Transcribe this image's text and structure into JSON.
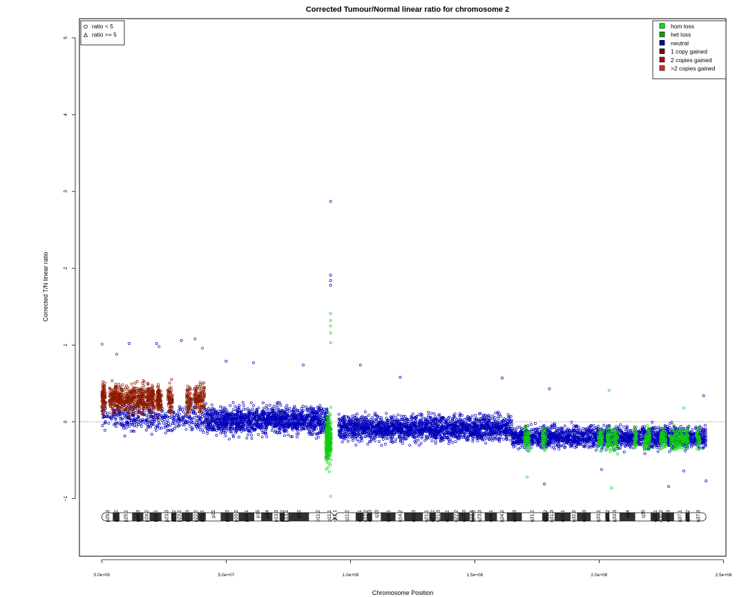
{
  "chart_data": {
    "type": "scatter",
    "title": "Corrected Tumour/Normal linear ratio for chromosome  2",
    "xlabel": "Chromosome Position",
    "ylabel": "Corrected T/N linear ratio",
    "xlim": [
      -9000000,
      251000000
    ],
    "ylim": [
      -1.75,
      5.25
    ],
    "x_ticks": [
      0,
      50000000,
      100000000,
      150000000,
      200000000,
      250000000
    ],
    "x_tick_labels": [
      "0.0e+00",
      "5.0e+07",
      "1.0e+08",
      "1.5e+08",
      "2.0e+08",
      "2.5e+08"
    ],
    "y_ticks": [
      -1,
      0,
      1,
      2,
      3,
      4,
      5
    ],
    "y_tick_labels": [
      "−1",
      "0",
      "1",
      "2",
      "3",
      "4",
      "5"
    ],
    "reference_line_y": 0,
    "grid": false,
    "shape_legend": {
      "placement": "top-left",
      "entries": [
        {
          "label": "ratio < 5",
          "shape": "circle"
        },
        {
          "label": "ratio >= 5",
          "shape": "triangle"
        }
      ]
    },
    "legend": {
      "placement": "top-right",
      "entries": [
        {
          "label": "hom loss",
          "color": "#00ee00"
        },
        {
          "label": "het loss",
          "color": "#00aa00"
        },
        {
          "label": "neutral",
          "color": "#0000aa"
        },
        {
          "label": "1 copy gained",
          "color": "#661100"
        },
        {
          "label": "2 copies gained",
          "color": "#aa1111"
        },
        {
          "label": ">2 copies gained",
          "color": "#ee2222"
        }
      ]
    },
    "series": [
      {
        "name": "neutral",
        "color": "#0000bb",
        "segments": [
          {
            "x": [
              0,
              42000000
            ],
            "mean": 0.05,
            "spread": 0.32,
            "points": 420
          },
          {
            "x": [
              42000000,
              91000000
            ],
            "mean": 0.02,
            "spread": 0.3,
            "points": 1500
          },
          {
            "x": [
              95000000,
              165000000
            ],
            "mean": -0.08,
            "spread": 0.28,
            "points": 2000
          },
          {
            "x": [
              165000000,
              243000000
            ],
            "mean": -0.2,
            "spread": 0.24,
            "points": 2000
          }
        ],
        "outliers": [
          {
            "x": 92000000,
            "y": 2.87
          },
          {
            "x": 92000000,
            "y": 1.91
          },
          {
            "x": 92000000,
            "y": 1.84
          },
          {
            "x": 92000000,
            "y": 1.78
          },
          {
            "x": 32000000,
            "y": 1.06
          },
          {
            "x": 11000000,
            "y": 1.02
          },
          {
            "x": 22000000,
            "y": 1.02
          },
          {
            "x": 50000000,
            "y": 0.79
          },
          {
            "x": 61000000,
            "y": 0.77
          },
          {
            "x": 81000000,
            "y": 0.74
          },
          {
            "x": 104000000,
            "y": 0.74
          },
          {
            "x": 120000000,
            "y": 0.58
          },
          {
            "x": 161000000,
            "y": 0.57
          },
          {
            "x": 180000000,
            "y": 0.43
          },
          {
            "x": 242000000,
            "y": 0.34
          },
          {
            "x": 201000000,
            "y": -0.62
          },
          {
            "x": 234000000,
            "y": -0.64
          },
          {
            "x": 243000000,
            "y": -0.77
          },
          {
            "x": 178000000,
            "y": -0.81
          },
          {
            "x": 228000000,
            "y": -0.84
          }
        ]
      },
      {
        "name": "1 copy gained",
        "color": "#8b1a00",
        "segments": [
          {
            "x": [
              0,
              1500000
            ],
            "mean": 0.3,
            "spread": 0.32,
            "points": 90
          },
          {
            "x": [
              3000000,
              9000000
            ],
            "mean": 0.3,
            "spread": 0.32,
            "points": 220
          },
          {
            "x": [
              9500000,
              13500000
            ],
            "mean": 0.3,
            "spread": 0.32,
            "points": 140
          },
          {
            "x": [
              14000000,
              17500000
            ],
            "mean": 0.3,
            "spread": 0.32,
            "points": 130
          },
          {
            "x": [
              18000000,
              21000000
            ],
            "mean": 0.3,
            "spread": 0.32,
            "points": 130
          },
          {
            "x": [
              22000000,
              24000000
            ],
            "mean": 0.3,
            "spread": 0.32,
            "points": 110
          },
          {
            "x": [
              26500000,
              28500000
            ],
            "mean": 0.3,
            "spread": 0.3,
            "points": 70
          },
          {
            "x": [
              34000000,
              36000000
            ],
            "mean": 0.3,
            "spread": 0.3,
            "points": 70
          },
          {
            "x": [
              37000000,
              41500000
            ],
            "mean": 0.3,
            "spread": 0.3,
            "points": 140
          }
        ],
        "outliers": [
          {
            "x": 100000,
            "y": 1.01
          },
          {
            "x": 37500000,
            "y": 1.08
          },
          {
            "x": 23000000,
            "y": 0.98
          },
          {
            "x": 6000000,
            "y": 0.88
          },
          {
            "x": 40500000,
            "y": 0.96
          }
        ]
      },
      {
        "name": "hom loss",
        "color": "#11cc11",
        "segments": [
          {
            "x": [
              90000000,
              92300000
            ],
            "mean": -0.25,
            "spread": 0.55,
            "points": 260
          },
          {
            "x": [
              170000000,
              172000000
            ],
            "mean": -0.22,
            "spread": 0.26,
            "points": 70
          },
          {
            "x": [
              177000000,
              178500000
            ],
            "mean": -0.22,
            "spread": 0.24,
            "points": 50
          },
          {
            "x": [
              199500000,
              201500000
            ],
            "mean": -0.22,
            "spread": 0.24,
            "points": 60
          },
          {
            "x": [
              203000000,
              207500000
            ],
            "mean": -0.22,
            "spread": 0.24,
            "points": 120
          },
          {
            "x": [
              214000000,
              215000000
            ],
            "mean": -0.22,
            "spread": 0.22,
            "points": 40
          },
          {
            "x": [
              218000000,
              220500000
            ],
            "mean": -0.22,
            "spread": 0.22,
            "points": 70
          },
          {
            "x": [
              224500000,
              227000000
            ],
            "mean": -0.22,
            "spread": 0.22,
            "points": 70
          },
          {
            "x": [
              228500000,
              236000000
            ],
            "mean": -0.22,
            "spread": 0.22,
            "points": 180
          },
          {
            "x": [
              239000000,
              240500000
            ],
            "mean": -0.22,
            "spread": 0.22,
            "points": 40
          }
        ],
        "outliers": [
          {
            "x": 92000000,
            "y": 1.41
          },
          {
            "x": 92000000,
            "y": 1.32
          },
          {
            "x": 92000000,
            "y": 1.25
          },
          {
            "x": 92000000,
            "y": 1.16
          },
          {
            "x": 92000000,
            "y": 1.03
          },
          {
            "x": 92000000,
            "y": -0.97
          },
          {
            "x": 204000000,
            "y": 0.41
          },
          {
            "x": 171000000,
            "y": -0.72
          },
          {
            "x": 205000000,
            "y": -0.86
          },
          {
            "x": 234000000,
            "y": 0.18
          }
        ]
      }
    ],
    "ideogram": {
      "p_arm_end": 92300000,
      "centromere_end": 95000000,
      "chrom_end": 243000000,
      "bands": [
        {
          "name": "p25.3",
          "start": 0,
          "end": 4400000,
          "stain": "gneg"
        },
        {
          "name": "p25.2",
          "start": 4400000,
          "end": 7100000,
          "stain": "gpos"
        },
        {
          "name": "p25.1",
          "start": 7100000,
          "end": 12200000,
          "stain": "gneg"
        },
        {
          "name": "p24.3",
          "start": 12200000,
          "end": 16700000,
          "stain": "gpos"
        },
        {
          "name": "p24.2",
          "start": 16700000,
          "end": 19200000,
          "stain": "gneg"
        },
        {
          "name": "p24.1",
          "start": 19200000,
          "end": 24000000,
          "stain": "gpos"
        },
        {
          "name": "p23.3",
          "start": 24000000,
          "end": 27900000,
          "stain": "gneg"
        },
        {
          "name": "p23.2",
          "start": 27900000,
          "end": 30000000,
          "stain": "gpos"
        },
        {
          "name": "p23.1",
          "start": 30000000,
          "end": 32100000,
          "stain": "gneg"
        },
        {
          "name": "p22.3",
          "start": 32100000,
          "end": 36600000,
          "stain": "gpos"
        },
        {
          "name": "p22.2",
          "start": 36600000,
          "end": 38600000,
          "stain": "gneg"
        },
        {
          "name": "p22.1",
          "start": 38600000,
          "end": 41800000,
          "stain": "gpos"
        },
        {
          "name": "p21",
          "start": 41800000,
          "end": 47800000,
          "stain": "gneg"
        },
        {
          "name": "p16.3",
          "start": 47800000,
          "end": 52900000,
          "stain": "gpos"
        },
        {
          "name": "p16.2",
          "start": 52900000,
          "end": 55000000,
          "stain": "gneg"
        },
        {
          "name": "p16.1",
          "start": 55000000,
          "end": 61300000,
          "stain": "gpos"
        },
        {
          "name": "p15",
          "start": 61300000,
          "end": 64100000,
          "stain": "gneg"
        },
        {
          "name": "p14",
          "start": 64100000,
          "end": 68600000,
          "stain": "gpos"
        },
        {
          "name": "p13.3",
          "start": 68600000,
          "end": 71500000,
          "stain": "gneg"
        },
        {
          "name": "p13.2",
          "start": 71500000,
          "end": 73500000,
          "stain": "gpos"
        },
        {
          "name": "p13.1",
          "start": 73500000,
          "end": 75000000,
          "stain": "gneg"
        },
        {
          "name": "p12",
          "start": 75000000,
          "end": 83300000,
          "stain": "gpos"
        },
        {
          "name": "p11.2",
          "start": 83300000,
          "end": 90500000,
          "stain": "gneg"
        },
        {
          "name": "p11.1",
          "start": 90500000,
          "end": 92300000,
          "stain": "acen"
        },
        {
          "name": "q11.1",
          "start": 92300000,
          "end": 95000000,
          "stain": "acen"
        },
        {
          "name": "q11.2",
          "start": 95000000,
          "end": 102100000,
          "stain": "gneg"
        },
        {
          "name": "q12.1",
          "start": 102100000,
          "end": 105300000,
          "stain": "gpos"
        },
        {
          "name": "q12.2",
          "start": 105300000,
          "end": 106700000,
          "stain": "gneg"
        },
        {
          "name": "q12.3",
          "start": 106700000,
          "end": 108700000,
          "stain": "gpos"
        },
        {
          "name": "q13",
          "start": 108700000,
          "end": 112200000,
          "stain": "gneg"
        },
        {
          "name": "q14.1",
          "start": 112200000,
          "end": 118100000,
          "stain": "gpos"
        },
        {
          "name": "q14.2",
          "start": 118100000,
          "end": 121600000,
          "stain": "gneg"
        },
        {
          "name": "q14.3",
          "start": 121600000,
          "end": 129100000,
          "stain": "gpos"
        },
        {
          "name": "q21.1",
          "start": 129100000,
          "end": 131700000,
          "stain": "gneg"
        },
        {
          "name": "q21.2",
          "start": 131700000,
          "end": 134300000,
          "stain": "gpos"
        },
        {
          "name": "q21.3",
          "start": 134300000,
          "end": 136100000,
          "stain": "gneg"
        },
        {
          "name": "q22.1",
          "start": 136100000,
          "end": 141500000,
          "stain": "gpos"
        },
        {
          "name": "q22.2",
          "start": 141500000,
          "end": 143400000,
          "stain": "gneg"
        },
        {
          "name": "q22.3",
          "start": 143400000,
          "end": 147900000,
          "stain": "gpos"
        },
        {
          "name": "q23.1",
          "start": 147900000,
          "end": 149000000,
          "stain": "gneg"
        },
        {
          "name": "q23.2",
          "start": 149000000,
          "end": 149600000,
          "stain": "gpos"
        },
        {
          "name": "q23.3",
          "start": 149600000,
          "end": 154000000,
          "stain": "gneg"
        },
        {
          "name": "q24.1",
          "start": 154000000,
          "end": 158900000,
          "stain": "gpos"
        },
        {
          "name": "q24.2",
          "start": 158900000,
          "end": 162900000,
          "stain": "gneg"
        },
        {
          "name": "q24.3",
          "start": 162900000,
          "end": 168900000,
          "stain": "gpos"
        },
        {
          "name": "q31.1",
          "start": 168900000,
          "end": 177100000,
          "stain": "gneg"
        },
        {
          "name": "q31.2",
          "start": 177100000,
          "end": 179700000,
          "stain": "gpos"
        },
        {
          "name": "q31.3",
          "start": 179700000,
          "end": 182100000,
          "stain": "gneg"
        },
        {
          "name": "q32.1",
          "start": 182100000,
          "end": 188500000,
          "stain": "gpos"
        },
        {
          "name": "q32.2",
          "start": 188500000,
          "end": 191100000,
          "stain": "gneg"
        },
        {
          "name": "q32.3",
          "start": 191100000,
          "end": 196600000,
          "stain": "gpos"
        },
        {
          "name": "q33.1",
          "start": 196600000,
          "end": 202500000,
          "stain": "gneg"
        },
        {
          "name": "q33.2",
          "start": 202500000,
          "end": 204100000,
          "stain": "gpos"
        },
        {
          "name": "q33.3",
          "start": 204100000,
          "end": 208200000,
          "stain": "gneg"
        },
        {
          "name": "q34",
          "start": 208200000,
          "end": 214500000,
          "stain": "gpos"
        },
        {
          "name": "q35",
          "start": 214500000,
          "end": 220700000,
          "stain": "gneg"
        },
        {
          "name": "q36.1",
          "start": 220700000,
          "end": 224300000,
          "stain": "gpos"
        },
        {
          "name": "q36.2",
          "start": 224300000,
          "end": 225200000,
          "stain": "gneg"
        },
        {
          "name": "q36.3",
          "start": 225200000,
          "end": 230100000,
          "stain": "gpos"
        },
        {
          "name": "q37.1",
          "start": 230100000,
          "end": 234700000,
          "stain": "gneg"
        },
        {
          "name": "q37.2",
          "start": 234700000,
          "end": 236400000,
          "stain": "gpos"
        },
        {
          "name": "q37.3",
          "start": 236400000,
          "end": 243000000,
          "stain": "gneg"
        }
      ]
    }
  }
}
